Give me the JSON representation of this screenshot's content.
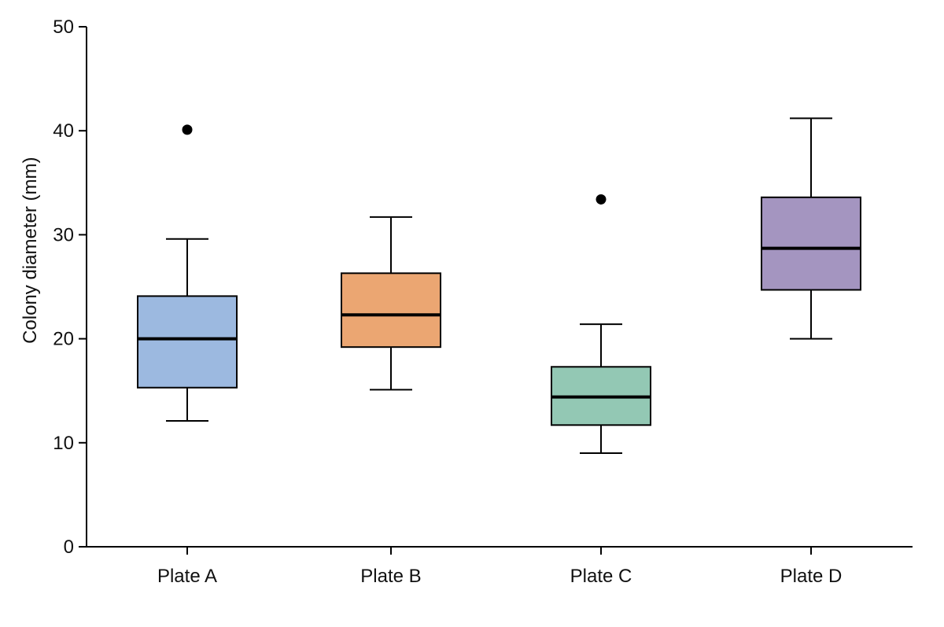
{
  "chart_data": {
    "type": "box",
    "ylabel": "Colony diameter (mm)",
    "ylim": [
      0,
      50
    ],
    "yticks": [
      0,
      10,
      20,
      30,
      40,
      50
    ],
    "yticks_labels": [
      "0",
      "10",
      "20",
      "30",
      "40",
      "50"
    ],
    "grid": false,
    "categories": [
      "Plate A",
      "Plate B",
      "Plate C",
      "Plate D"
    ],
    "boxes": [
      {
        "category": "Plate A",
        "whisker_low": 12.1,
        "q1": 15.3,
        "median": 20.0,
        "q3": 24.1,
        "whisker_high": 29.6,
        "outliers": [
          40.1
        ],
        "color": "#9cb9e0"
      },
      {
        "category": "Plate B",
        "whisker_low": 15.1,
        "q1": 19.2,
        "median": 22.3,
        "q3": 26.3,
        "whisker_high": 31.7,
        "outliers": [],
        "color": "#eba672"
      },
      {
        "category": "Plate C",
        "whisker_low": 9.0,
        "q1": 11.7,
        "median": 14.4,
        "q3": 17.3,
        "whisker_high": 21.4,
        "outliers": [
          33.4
        ],
        "color": "#93c8b4"
      },
      {
        "category": "Plate D",
        "whisker_low": 20.0,
        "q1": 24.7,
        "median": 28.7,
        "q3": 33.6,
        "whisker_high": 41.2,
        "outliers": [],
        "color": "#a495c0"
      }
    ]
  }
}
